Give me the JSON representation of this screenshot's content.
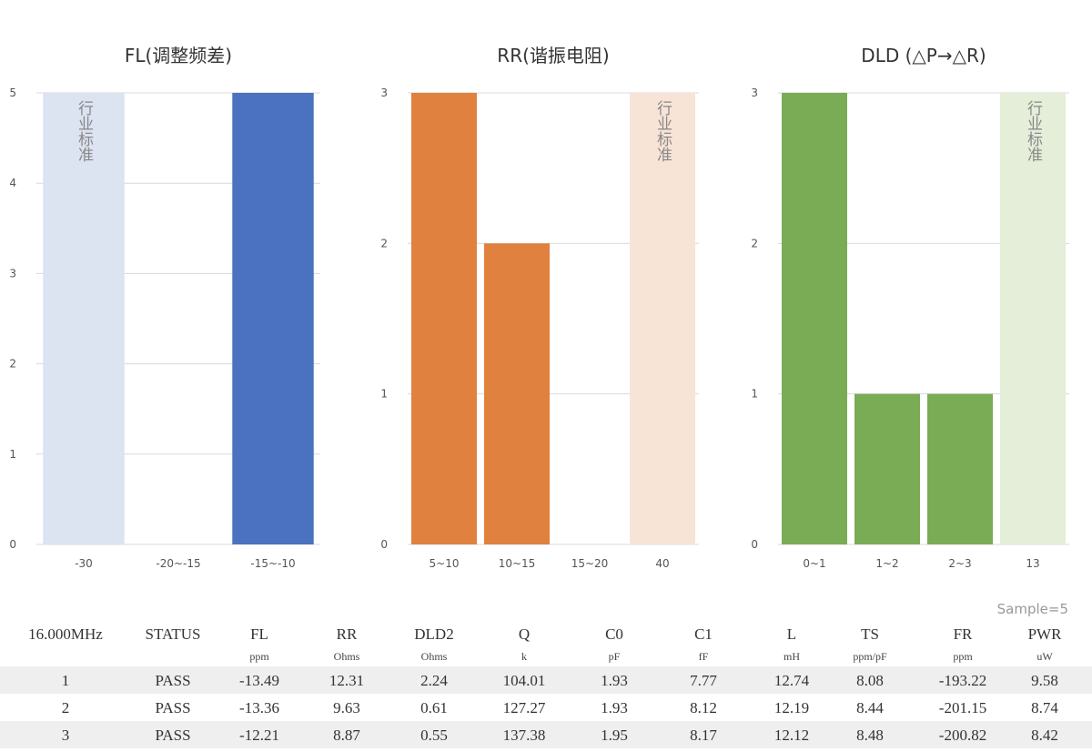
{
  "chart_data": [
    {
      "type": "bar",
      "title": "FL(调整频差)",
      "categories": [
        "-30",
        "-20~-15",
        "-15~-10"
      ],
      "values": [
        null,
        0,
        5
      ],
      "ylim": [
        0,
        5
      ],
      "yticks": [
        0,
        1,
        2,
        3,
        4,
        5
      ],
      "color": "#4a72c0",
      "band": {
        "category": "-30",
        "label": "行业标准",
        "color": "#dce3f1"
      }
    },
    {
      "type": "bar",
      "title": "RR(谐振电阻)",
      "categories": [
        "5~10",
        "10~15",
        "15~20",
        "40"
      ],
      "values": [
        3,
        2,
        0,
        null
      ],
      "ylim": [
        0,
        3
      ],
      "yticks": [
        0,
        1,
        2,
        3
      ],
      "color": "#e08140",
      "band": {
        "category": "40",
        "label": "行业标准",
        "color": "#f8e4d6"
      }
    },
    {
      "type": "bar",
      "title": "DLD (△P→△R)",
      "categories": [
        "0~1",
        "1~2",
        "2~3",
        "13"
      ],
      "values": [
        3,
        1,
        1,
        null
      ],
      "ylim": [
        0,
        3
      ],
      "yticks": [
        0,
        1,
        2,
        3
      ],
      "color": "#7aab55",
      "band": {
        "category": "13",
        "label": "行业标准",
        "color": "#e4eed9"
      }
    }
  ],
  "table": {
    "sample": "Sample=5",
    "headers": [
      "16.000MHz",
      "STATUS",
      "FL",
      "RR",
      "DLD2",
      "Q",
      "C0",
      "C1",
      "L",
      "TS",
      "FR",
      "PWR"
    ],
    "units": [
      "",
      "",
      "ppm",
      "Ohms",
      "Ohms",
      "k",
      "pF",
      "fF",
      "mH",
      "ppm/pF",
      "ppm",
      "uW"
    ],
    "rows": [
      [
        "1",
        "PASS",
        "-13.49",
        "12.31",
        "2.24",
        "104.01",
        "1.93",
        "7.77",
        "12.74",
        "8.08",
        "-193.22",
        "9.58"
      ],
      [
        "2",
        "PASS",
        "-13.36",
        "9.63",
        "0.61",
        "127.27",
        "1.93",
        "8.12",
        "12.19",
        "8.44",
        "-201.15",
        "8.74"
      ],
      [
        "3",
        "PASS",
        "-12.21",
        "8.87",
        "0.55",
        "137.38",
        "1.95",
        "8.17",
        "12.12",
        "8.48",
        "-200.82",
        "8.42"
      ]
    ]
  }
}
